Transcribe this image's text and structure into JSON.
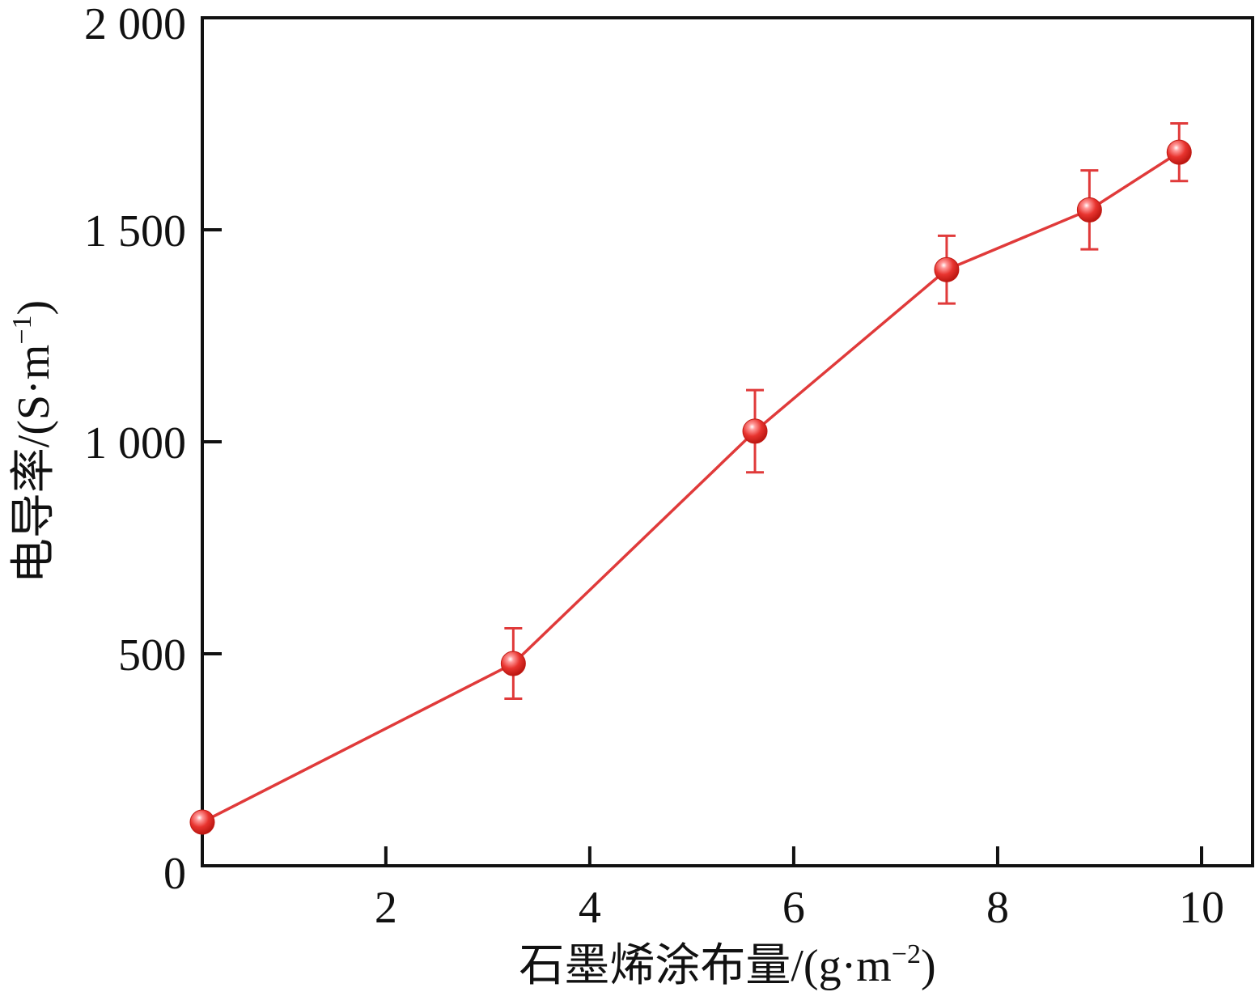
{
  "chart_data": {
    "type": "line",
    "xlabel": {
      "main": "石墨烯涂布量/(g·m",
      "sup": "−2",
      "tail": ")"
    },
    "ylabel": {
      "main": "电导率/(S·m",
      "sup": "−1",
      "tail": ")"
    },
    "xlim": [
      0.2,
      10.5
    ],
    "ylim": [
      0,
      2000
    ],
    "x_ticks": [
      2,
      4,
      6,
      8,
      10
    ],
    "x_tick_labels": [
      "2",
      "4",
      "6",
      "8",
      "10"
    ],
    "y_ticks": [
      0,
      500,
      1000,
      1500,
      2000
    ],
    "y_tick_labels": [
      "0",
      "500",
      "1 000",
      "1 500",
      "2 000"
    ],
    "grid": false,
    "series": [
      {
        "color": "#e03a3a",
        "x": [
          0.2,
          3.25,
          5.62,
          7.5,
          8.9,
          9.78
        ],
        "y": [
          103,
          477,
          1025,
          1406,
          1547,
          1683
        ],
        "error": [
          null,
          83,
          97,
          80,
          93,
          68
        ]
      }
    ]
  }
}
